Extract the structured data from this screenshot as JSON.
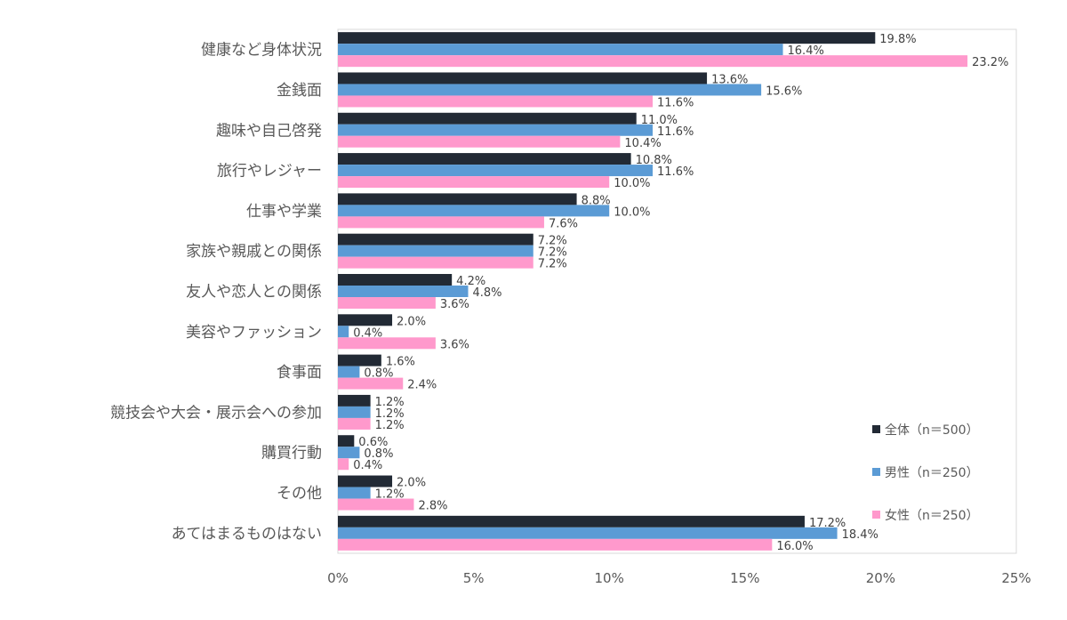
{
  "chart_data": {
    "type": "bar",
    "orientation": "horizontal",
    "categories": [
      "健康など身体状況",
      "金銭面",
      "趣味や自己啓発",
      "旅行やレジャー",
      "仕事や学業",
      "家族や親戚との関係",
      "友人や恋人との関係",
      "美容やファッション",
      "食事面",
      "競技会や大会・展示会への参加",
      "購買行動",
      "その他",
      "あてはまるものはない"
    ],
    "series": [
      {
        "name": "全体（n＝500）",
        "color": "#222a35",
        "values": [
          19.8,
          13.6,
          11.0,
          10.8,
          8.8,
          7.2,
          4.2,
          2.0,
          1.6,
          1.2,
          0.6,
          2.0,
          17.2
        ]
      },
      {
        "name": "男性（n＝250）",
        "color": "#5b9bd5",
        "values": [
          16.4,
          15.6,
          11.6,
          11.6,
          10.0,
          7.2,
          4.8,
          0.4,
          0.8,
          1.2,
          0.8,
          1.2,
          18.4
        ]
      },
      {
        "name": "女性（n＝250）",
        "color": "#ff99cc",
        "values": [
          23.2,
          11.6,
          10.4,
          10.0,
          7.6,
          7.2,
          3.6,
          3.6,
          2.4,
          1.2,
          0.4,
          2.8,
          16.0
        ]
      }
    ],
    "xlim": [
      0,
      25
    ],
    "xticks": [
      0,
      5,
      10,
      15,
      20,
      25
    ],
    "xtick_labels": [
      "0%",
      "5%",
      "10%",
      "15%",
      "20%",
      "25%"
    ],
    "value_suffix": "%",
    "legend_position": "bottom-right inside",
    "grid": false,
    "title": "",
    "xlabel": "",
    "ylabel": ""
  }
}
